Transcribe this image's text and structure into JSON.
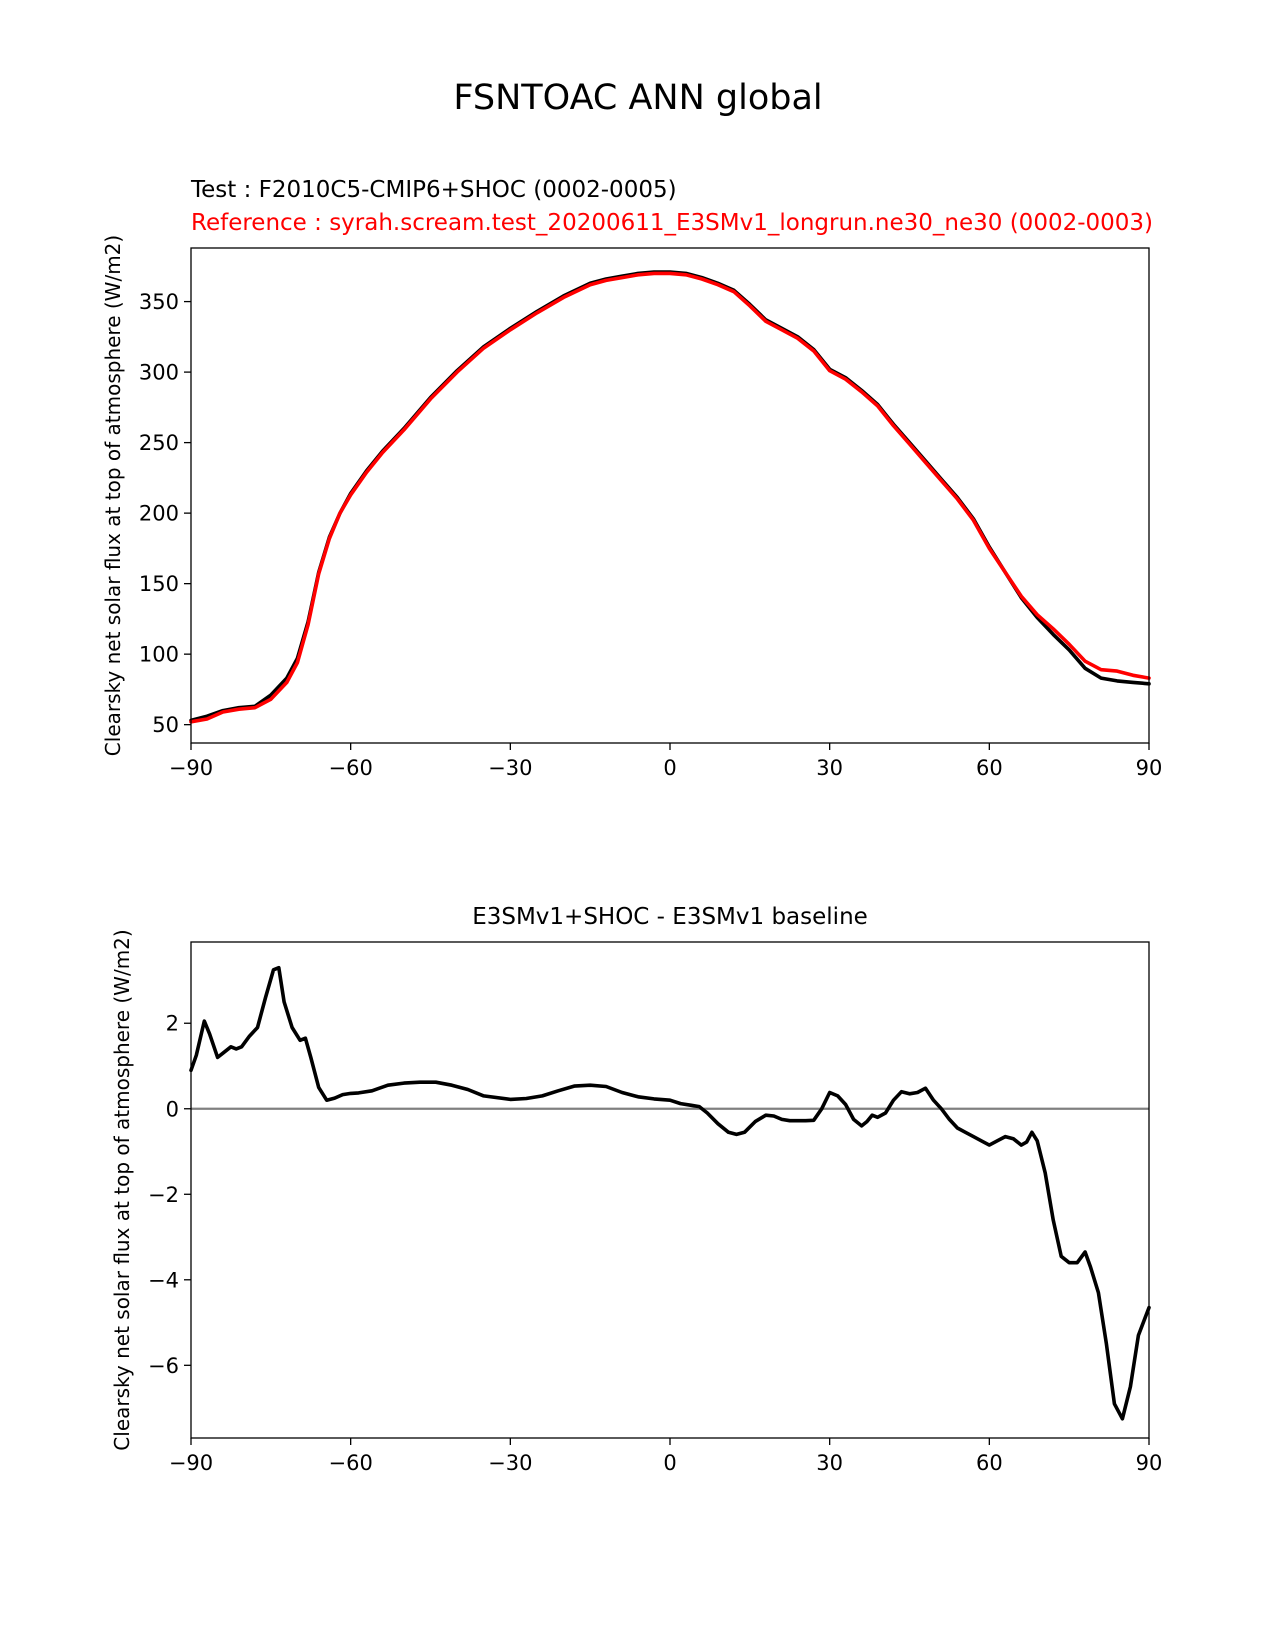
{
  "figure": {
    "title": "FSNTOAC ANN global"
  },
  "colors": {
    "test": "#000000",
    "reference": "#ff0000",
    "zero_line": "#808080",
    "axes": "#000000"
  },
  "chart_data": [
    {
      "type": "line",
      "title_test": "Test : F2010C5-CMIP6+SHOC (0002-0005)",
      "title_reference": "Reference : syrah.scream.test_20200611_E3SMv1_longrun.ne30_ne30 (0002-0003)",
      "xlabel": "",
      "ylabel": "Clearsky net solar flux at top of atmosphere (W/m2)",
      "xlim": [
        -90,
        90
      ],
      "ylim": [
        37,
        388
      ],
      "xticks": [
        -90,
        -60,
        -30,
        0,
        30,
        60,
        90
      ],
      "xtick_labels": [
        "−90",
        "−60",
        "−30",
        "0",
        "30",
        "60",
        "90"
      ],
      "yticks": [
        50,
        100,
        150,
        200,
        250,
        300,
        350
      ],
      "ytick_labels": [
        "50",
        "100",
        "150",
        "200",
        "250",
        "300",
        "350"
      ],
      "x": [
        -90,
        -87,
        -84,
        -81,
        -78,
        -75,
        -72,
        -70,
        -68,
        -66,
        -64,
        -62,
        -60,
        -57,
        -54,
        -50,
        -45,
        -40,
        -35,
        -30,
        -25,
        -20,
        -15,
        -12,
        -9,
        -6,
        -3,
        0,
        3,
        6,
        9,
        12,
        15,
        18,
        21,
        24,
        27,
        30,
        33,
        36,
        39,
        42,
        45,
        48,
        51,
        54,
        57,
        60,
        63,
        66,
        69,
        72,
        75,
        78,
        81,
        84,
        87,
        90
      ],
      "series": [
        {
          "name": "Test",
          "color": "#000000",
          "values": [
            53,
            56,
            60,
            62,
            63,
            71,
            83,
            97,
            123,
            158,
            183,
            200,
            214,
            230,
            244,
            260,
            282,
            301,
            318,
            331,
            343,
            354,
            363,
            366,
            368,
            370,
            371,
            371,
            370,
            367,
            363,
            358,
            348,
            337,
            331,
            325,
            316,
            302,
            296,
            287,
            277,
            263,
            250,
            237,
            224,
            211,
            196,
            176,
            158,
            140,
            126,
            114,
            103,
            90,
            83,
            81,
            80,
            79
          ]
        },
        {
          "name": "Reference",
          "color": "#ff0000",
          "values": [
            52,
            54,
            59,
            61,
            62,
            68,
            80,
            94,
            121,
            157,
            182,
            200,
            213,
            229,
            243,
            259,
            281,
            300,
            317,
            330,
            342,
            353,
            362,
            365,
            367,
            369,
            370,
            370,
            369,
            366,
            362,
            357,
            347,
            336,
            330,
            324,
            315,
            301,
            295,
            286,
            276,
            262,
            249,
            236,
            223,
            210,
            195,
            175,
            158,
            141,
            128,
            118,
            107,
            95,
            89,
            88,
            85,
            83
          ]
        }
      ]
    },
    {
      "type": "line",
      "title": "E3SMv1+SHOC - E3SMv1 baseline",
      "xlabel": "",
      "ylabel": "Clearsky net solar flux at top of atmosphere (W/m2)",
      "xlim": [
        -90,
        90
      ],
      "ylim": [
        -7.7,
        3.9
      ],
      "xticks": [
        -90,
        -60,
        -30,
        0,
        30,
        60,
        90
      ],
      "xtick_labels": [
        "−90",
        "−60",
        "−30",
        "0",
        "30",
        "60",
        "90"
      ],
      "yticks": [
        -6,
        -4,
        -2,
        0,
        2
      ],
      "ytick_labels": [
        "−6",
        "−4",
        "−2",
        "0",
        "2"
      ],
      "zero_line": 0,
      "x": [
        -90,
        -89,
        -87.5,
        -86.5,
        -85,
        -84,
        -82.5,
        -81.5,
        -80.5,
        -79,
        -77.5,
        -76,
        -74.5,
        -73.5,
        -72.5,
        -71,
        -69.5,
        -68.5,
        -67.5,
        -66,
        -64.5,
        -63,
        -61.5,
        -60,
        -58.5,
        -56,
        -53,
        -50,
        -47,
        -44,
        -41,
        -38,
        -35,
        -30,
        -27,
        -24,
        -21,
        -18,
        -15,
        -12,
        -9,
        -6,
        -3,
        0,
        2,
        4,
        5.5,
        7,
        9,
        11,
        12.5,
        14,
        16,
        18,
        19.5,
        21,
        22.5,
        24,
        25.5,
        27,
        28.5,
        30,
        31.5,
        33,
        34.5,
        36,
        37,
        38,
        39,
        40.5,
        42,
        43.5,
        45,
        46.5,
        48,
        49.5,
        51,
        52.5,
        54,
        55.5,
        57,
        58.5,
        60,
        61.5,
        63,
        64.5,
        66,
        67,
        68,
        69,
        70.5,
        72,
        73.5,
        75,
        76.5,
        78,
        79,
        80.5,
        82,
        83.5,
        85,
        86.5,
        88,
        90
      ],
      "series": [
        {
          "name": "Difference",
          "color": "#000000",
          "values": [
            0.9,
            1.25,
            2.05,
            1.75,
            1.2,
            1.3,
            1.45,
            1.4,
            1.45,
            1.7,
            1.9,
            2.6,
            3.25,
            3.3,
            2.5,
            1.9,
            1.6,
            1.65,
            1.2,
            0.5,
            0.2,
            0.25,
            0.33,
            0.36,
            0.37,
            0.42,
            0.55,
            0.6,
            0.62,
            0.62,
            0.55,
            0.45,
            0.3,
            0.22,
            0.24,
            0.3,
            0.42,
            0.53,
            0.55,
            0.52,
            0.38,
            0.28,
            0.23,
            0.2,
            0.12,
            0.08,
            0.05,
            -0.1,
            -0.35,
            -0.55,
            -0.6,
            -0.55,
            -0.3,
            -0.15,
            -0.17,
            -0.25,
            -0.28,
            -0.28,
            -0.28,
            -0.27,
            0.0,
            0.38,
            0.3,
            0.1,
            -0.25,
            -0.4,
            -0.3,
            -0.15,
            -0.2,
            -0.1,
            0.2,
            0.4,
            0.35,
            0.38,
            0.48,
            0.2,
            0.0,
            -0.25,
            -0.45,
            -0.55,
            -0.65,
            -0.75,
            -0.85,
            -0.75,
            -0.65,
            -0.7,
            -0.85,
            -0.78,
            -0.55,
            -0.75,
            -1.5,
            -2.6,
            -3.45,
            -3.6,
            -3.6,
            -3.35,
            -3.7,
            -4.3,
            -5.5,
            -6.9,
            -7.25,
            -6.5,
            -5.3,
            -4.65
          ]
        }
      ]
    }
  ]
}
